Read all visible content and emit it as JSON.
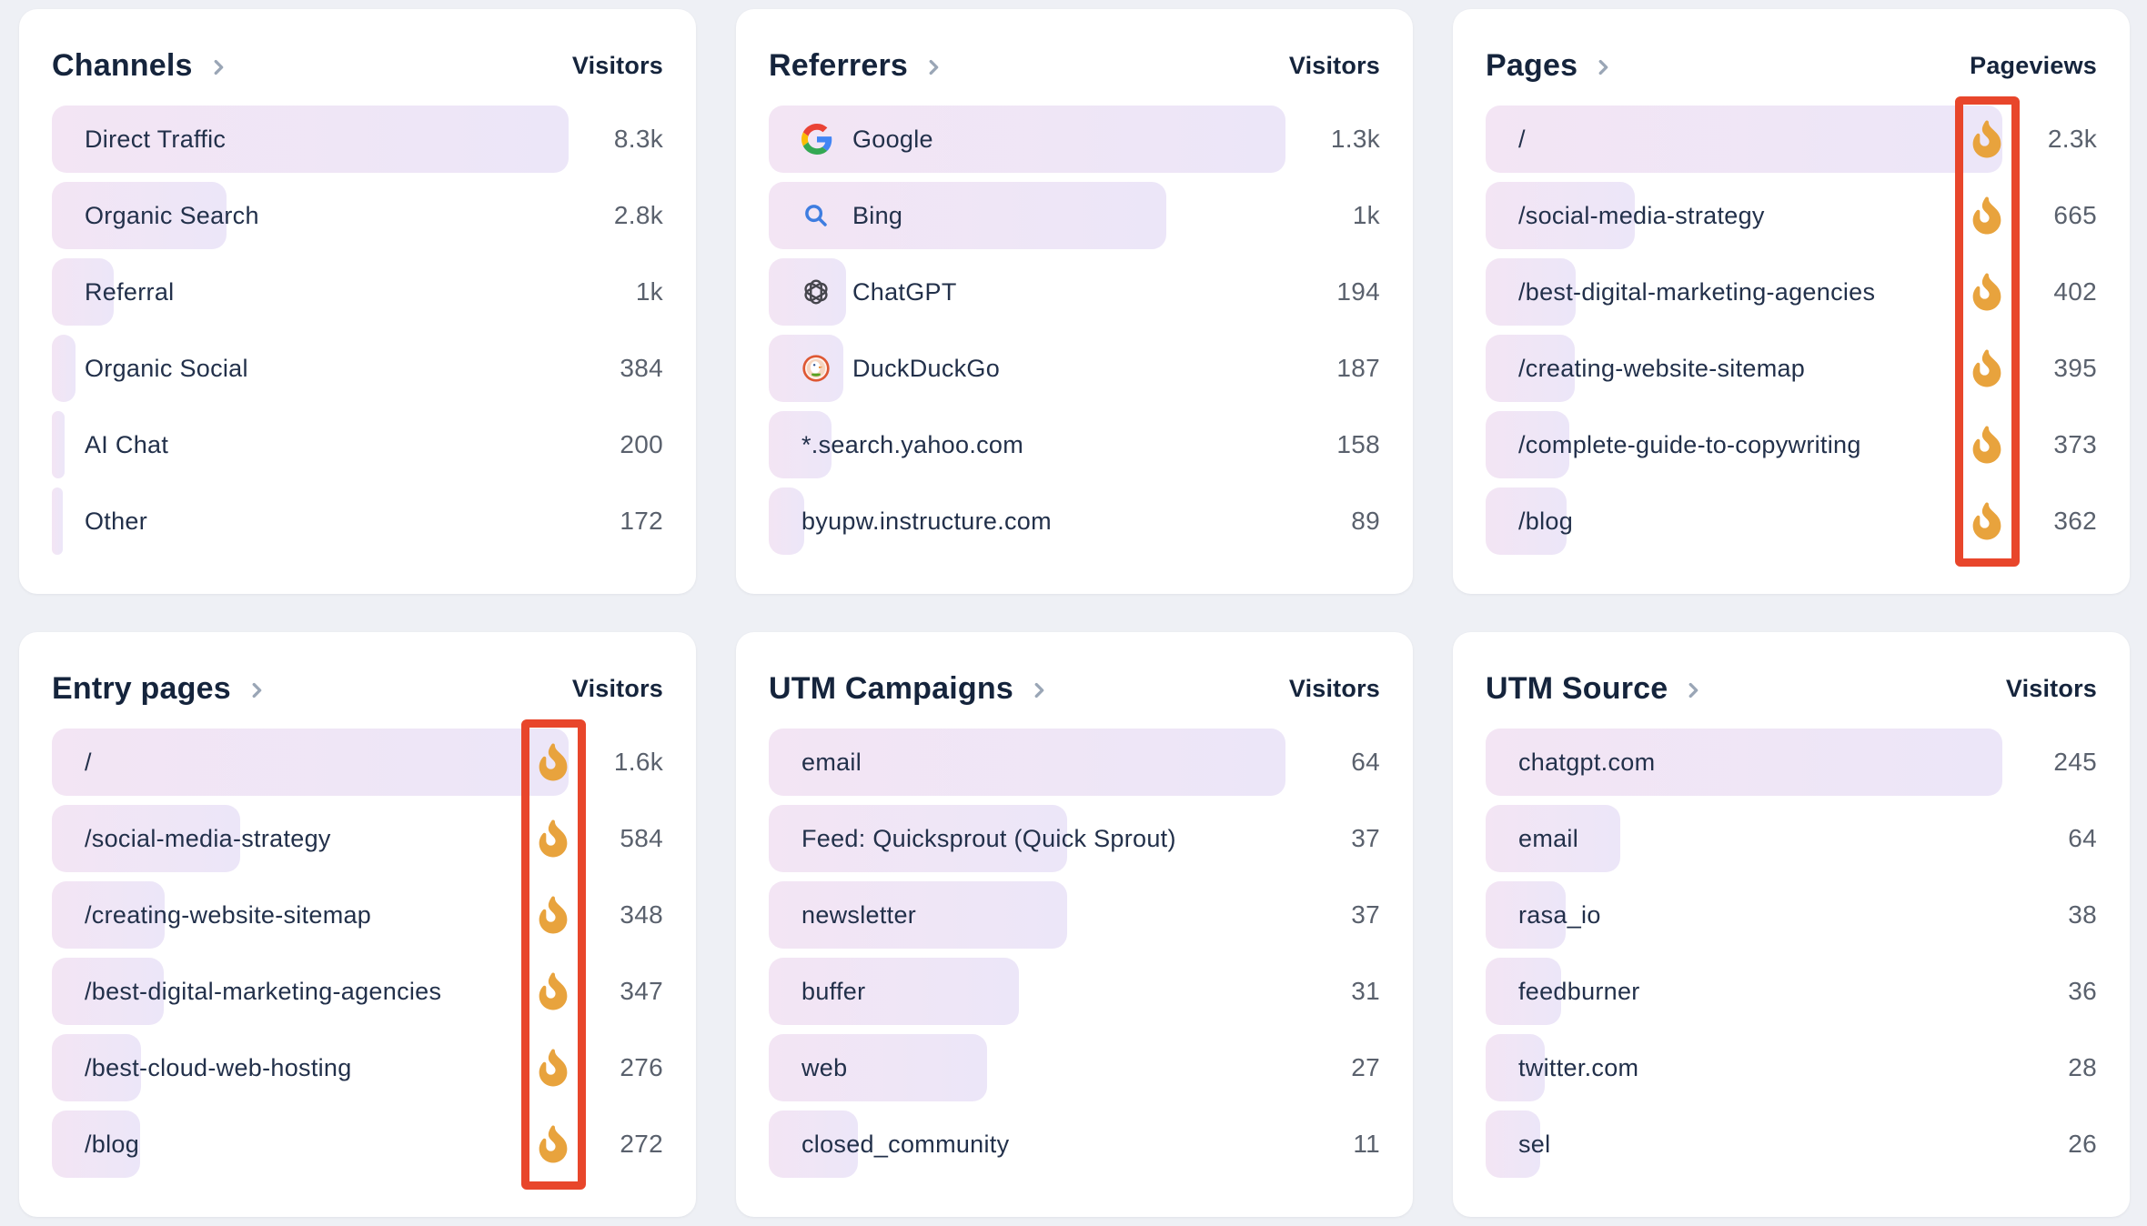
{
  "colors": {
    "page_bg": "#EEF0F5",
    "card_bg": "#FFFFFF",
    "title": "#15243C",
    "label": "#22304A",
    "value": "#5A616D",
    "chevron": "#9AA6B6",
    "bar_gradient_start": "#F3E5F4",
    "bar_gradient_end": "#ECE6F8",
    "flame_orange": "#E8A33D",
    "annotation_red": "#E8462B"
  },
  "cards": [
    {
      "id": "channels",
      "title": "Channels",
      "metric_label": "Visitors",
      "show_fire": false,
      "highlight_fire_column": false,
      "rows": [
        {
          "label": "Direct Traffic",
          "value": "8.3k",
          "num": 8300,
          "icon": null
        },
        {
          "label": "Organic Search",
          "value": "2.8k",
          "num": 2800,
          "icon": null
        },
        {
          "label": "Referral",
          "value": "1k",
          "num": 1000,
          "icon": null
        },
        {
          "label": "Organic Social",
          "value": "384",
          "num": 384,
          "icon": null
        },
        {
          "label": "AI Chat",
          "value": "200",
          "num": 200,
          "icon": null
        },
        {
          "label": "Other",
          "value": "172",
          "num": 172,
          "icon": null
        }
      ]
    },
    {
      "id": "referrers",
      "title": "Referrers",
      "metric_label": "Visitors",
      "show_fire": false,
      "highlight_fire_column": false,
      "rows": [
        {
          "label": "Google",
          "value": "1.3k",
          "num": 1300,
          "icon": "google"
        },
        {
          "label": "Bing",
          "value": "1k",
          "num": 1000,
          "icon": "bing"
        },
        {
          "label": "ChatGPT",
          "value": "194",
          "num": 194,
          "icon": "chatgpt"
        },
        {
          "label": "DuckDuckGo",
          "value": "187",
          "num": 187,
          "icon": "duckduckgo"
        },
        {
          "label": "*.search.yahoo.com",
          "value": "158",
          "num": 158,
          "icon": null
        },
        {
          "label": "byupw.instructure.com",
          "value": "89",
          "num": 89,
          "icon": null
        }
      ]
    },
    {
      "id": "pages",
      "title": "Pages",
      "metric_label": "Pageviews",
      "show_fire": true,
      "highlight_fire_column": true,
      "rows": [
        {
          "label": "/",
          "value": "2.3k",
          "num": 2300,
          "icon": null
        },
        {
          "label": "/social-media-strategy",
          "value": "665",
          "num": 665,
          "icon": null
        },
        {
          "label": "/best-digital-marketing-agencies",
          "value": "402",
          "num": 402,
          "icon": null
        },
        {
          "label": "/creating-website-sitemap",
          "value": "395",
          "num": 395,
          "icon": null
        },
        {
          "label": "/complete-guide-to-copywriting",
          "value": "373",
          "num": 373,
          "icon": null
        },
        {
          "label": "/blog",
          "value": "362",
          "num": 362,
          "icon": null
        }
      ]
    },
    {
      "id": "entry-pages",
      "title": "Entry pages",
      "metric_label": "Visitors",
      "show_fire": true,
      "highlight_fire_column": true,
      "rows": [
        {
          "label": "/",
          "value": "1.6k",
          "num": 1600,
          "icon": null
        },
        {
          "label": "/social-media-strategy",
          "value": "584",
          "num": 584,
          "icon": null
        },
        {
          "label": "/creating-website-sitemap",
          "value": "348",
          "num": 348,
          "icon": null
        },
        {
          "label": "/best-digital-marketing-agencies",
          "value": "347",
          "num": 347,
          "icon": null
        },
        {
          "label": "/best-cloud-web-hosting",
          "value": "276",
          "num": 276,
          "icon": null
        },
        {
          "label": "/blog",
          "value": "272",
          "num": 272,
          "icon": null
        }
      ]
    },
    {
      "id": "utm-campaigns",
      "title": "UTM Campaigns",
      "metric_label": "Visitors",
      "show_fire": false,
      "highlight_fire_column": false,
      "rows": [
        {
          "label": "email",
          "value": "64",
          "num": 64,
          "icon": null
        },
        {
          "label": "Feed: Quicksprout (Quick Sprout)",
          "value": "37",
          "num": 37,
          "icon": null
        },
        {
          "label": "newsletter",
          "value": "37",
          "num": 37,
          "icon": null
        },
        {
          "label": "buffer",
          "value": "31",
          "num": 31,
          "icon": null
        },
        {
          "label": "web",
          "value": "27",
          "num": 27,
          "icon": null
        },
        {
          "label": "closed_community",
          "value": "11",
          "num": 11,
          "icon": null
        }
      ]
    },
    {
      "id": "utm-source",
      "title": "UTM Source",
      "metric_label": "Visitors",
      "show_fire": false,
      "highlight_fire_column": false,
      "rows": [
        {
          "label": "chatgpt.com",
          "value": "245",
          "num": 245,
          "icon": null
        },
        {
          "label": "email",
          "value": "64",
          "num": 64,
          "icon": null
        },
        {
          "label": "rasa_io",
          "value": "38",
          "num": 38,
          "icon": null
        },
        {
          "label": "feedburner",
          "value": "36",
          "num": 36,
          "icon": null
        },
        {
          "label": "twitter.com",
          "value": "28",
          "num": 28,
          "icon": null
        },
        {
          "label": "sel",
          "value": "26",
          "num": 26,
          "icon": null
        }
      ]
    }
  ]
}
